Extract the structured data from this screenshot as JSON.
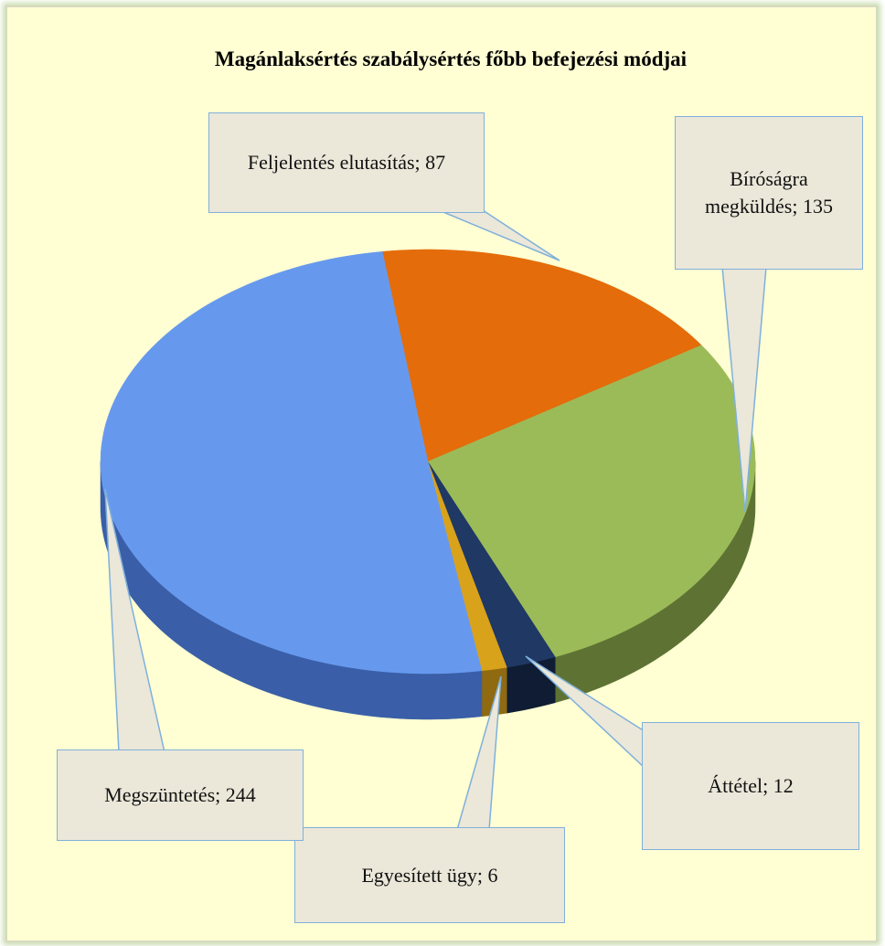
{
  "chart_data": {
    "type": "pie",
    "title": "Magánlaksértés szabálysértés főbb befejezési módjai",
    "categories": [
      "Feljelentés elutasítás",
      "Bíróságra megküldés",
      "Áttétel",
      "Egyesített ügy",
      "Megszüntetés"
    ],
    "values": [
      87,
      135,
      12,
      6,
      244
    ],
    "label_separator": "; ",
    "colors": [
      "#e46c0a",
      "#9bbb59",
      "#1f3864",
      "#d9a21b",
      "#6699ee"
    ],
    "side_colors": [
      "#9c4a06",
      "#5e7333",
      "#0f1c33",
      "#8f6a10",
      "#3a5fa8"
    ]
  }
}
